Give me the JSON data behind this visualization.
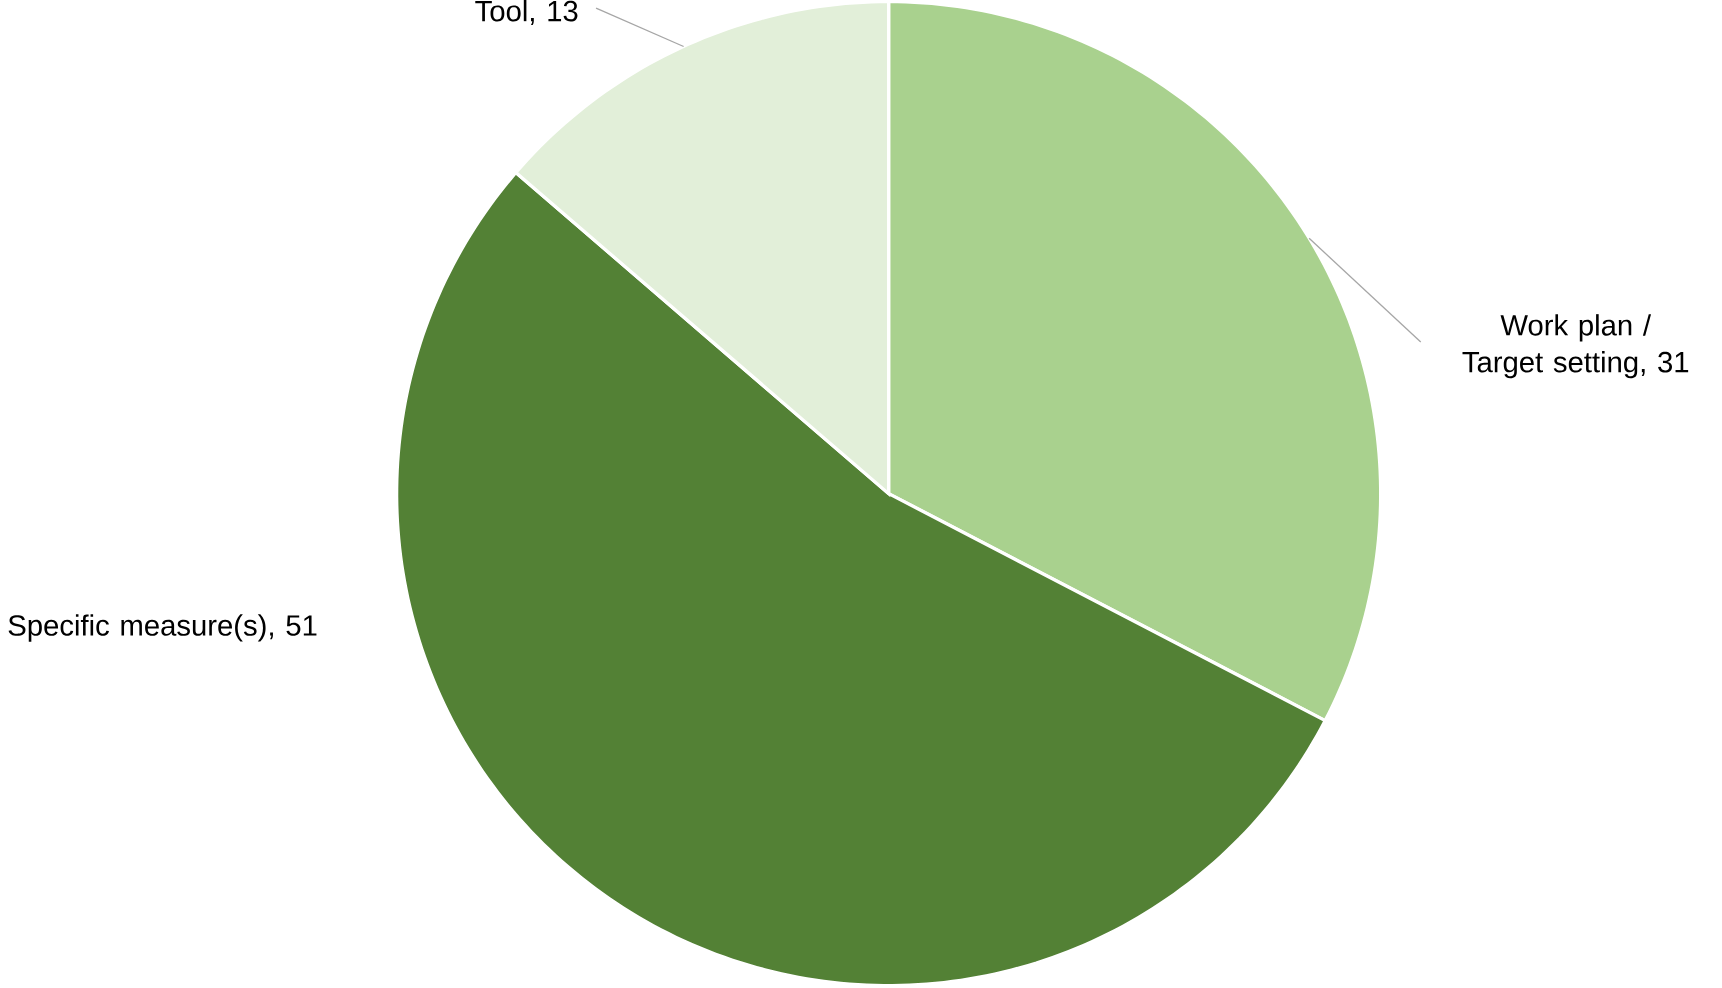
{
  "chart_data": {
    "type": "pie",
    "categories": [
      "Work plan / Target setting",
      "Specific measure(s)",
      "Tool"
    ],
    "values": [
      31,
      51,
      13
    ],
    "colors": [
      "#a9d18e",
      "#538135",
      "#e2efd9"
    ],
    "value_labels": [
      ",  31",
      ", 51",
      ", 13"
    ]
  }
}
